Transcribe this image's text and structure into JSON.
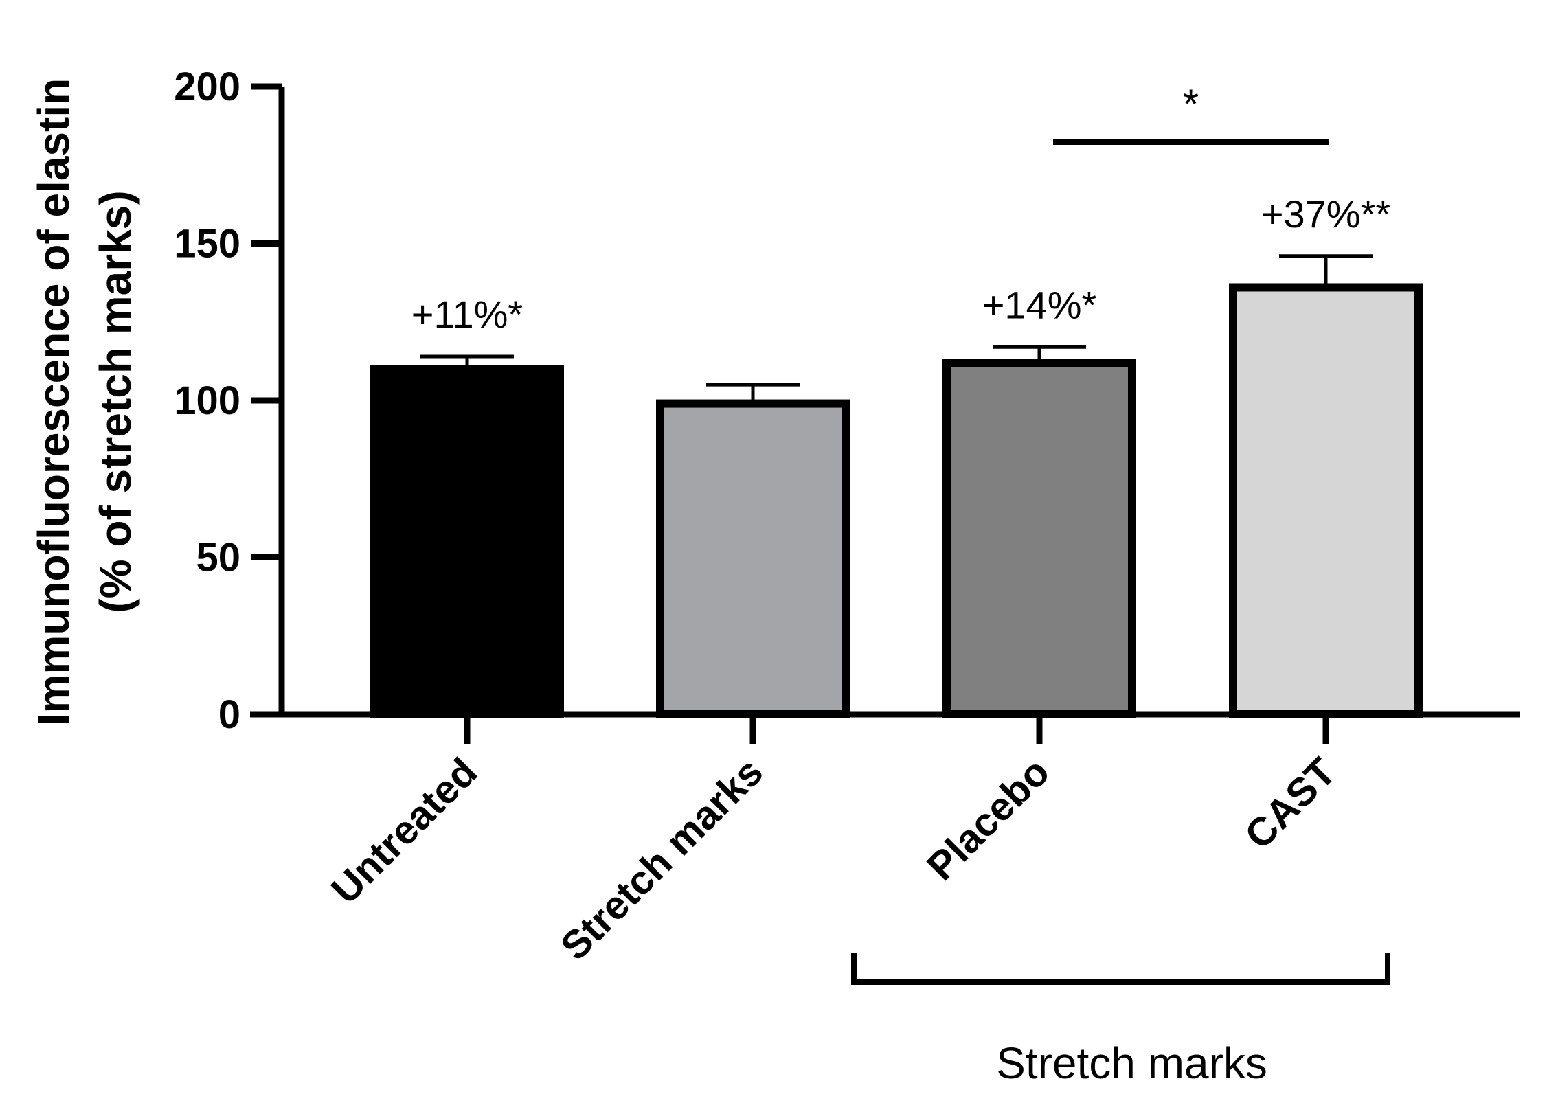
{
  "chart_data": {
    "type": "bar",
    "categories": [
      "Untreated",
      "Stretch marks",
      "Placebo",
      "CAST"
    ],
    "values": [
      110,
      99,
      112,
      136
    ],
    "errors": [
      4,
      6,
      5,
      10
    ],
    "colors": [
      "#000000",
      "#a4a5a8",
      "#808080",
      "#d6d6d6"
    ],
    "bar_outline": "#000000",
    "annotations": [
      "+11%*",
      "",
      "+14%*",
      "+37%**"
    ],
    "ylabel_line1": "Immunofluorescence of elastin",
    "ylabel_line2": "(% of stretch marks)",
    "ylim": [
      0,
      200
    ],
    "yticks": [
      0,
      50,
      100,
      150,
      200
    ],
    "significance": {
      "from": "Placebo",
      "to": "CAST",
      "label": "*"
    },
    "group_bracket": {
      "categories": [
        "Placebo",
        "CAST"
      ],
      "label": "Stretch marks"
    },
    "grid": false
  }
}
